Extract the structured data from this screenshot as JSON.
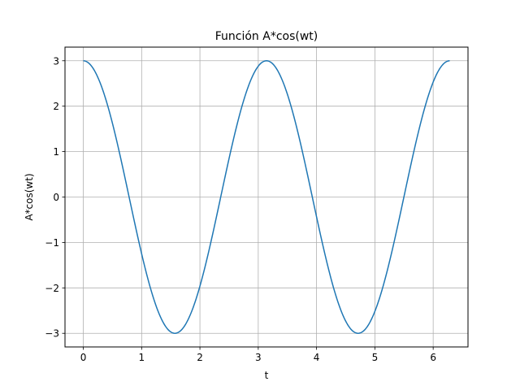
{
  "chart_data": {
    "type": "line",
    "title": "Función A*cos(wt)",
    "xlabel": "t",
    "ylabel": "A*cos(wt)",
    "xlim": [
      -0.314,
      6.597
    ],
    "ylim": [
      -3.3,
      3.3
    ],
    "x_ticks": [
      0,
      1,
      2,
      3,
      4,
      5,
      6
    ],
    "y_ticks": [
      3,
      2,
      1,
      0,
      -1,
      -2,
      -3
    ],
    "x_tick_labels": [
      "0",
      "1",
      "2",
      "3",
      "4",
      "5",
      "6"
    ],
    "y_tick_labels": [
      "3",
      "2",
      "1",
      "0",
      "−1",
      "−2",
      "−3"
    ],
    "grid": true,
    "series_color": "#1f77b4",
    "grid_color": "#b0b0b0",
    "series": [
      {
        "x": [
          0,
          0.2,
          0.4,
          0.6,
          0.8,
          1.0,
          1.2,
          1.4,
          1.6,
          1.8,
          2.0,
          2.2,
          2.4,
          2.6,
          2.8,
          3.0,
          3.2,
          3.4,
          3.6,
          3.8,
          4.0,
          4.2,
          4.4,
          4.6,
          4.8,
          5.0,
          5.2,
          5.4,
          5.6,
          5.8,
          6.0,
          6.2,
          6.283
        ],
        "y": [
          3.0,
          2.76,
          2.09,
          1.09,
          -0.09,
          -1.25,
          -2.21,
          -2.83,
          -2.99,
          -2.69,
          -1.96,
          -0.93,
          0.26,
          1.4,
          2.32,
          2.88,
          2.98,
          2.61,
          1.82,
          0.76,
          -0.44,
          -1.55,
          -2.43,
          -2.93,
          -2.96,
          -2.52,
          -1.67,
          -0.59,
          0.61,
          1.69,
          2.53,
          2.97,
          3.0
        ]
      }
    ]
  }
}
